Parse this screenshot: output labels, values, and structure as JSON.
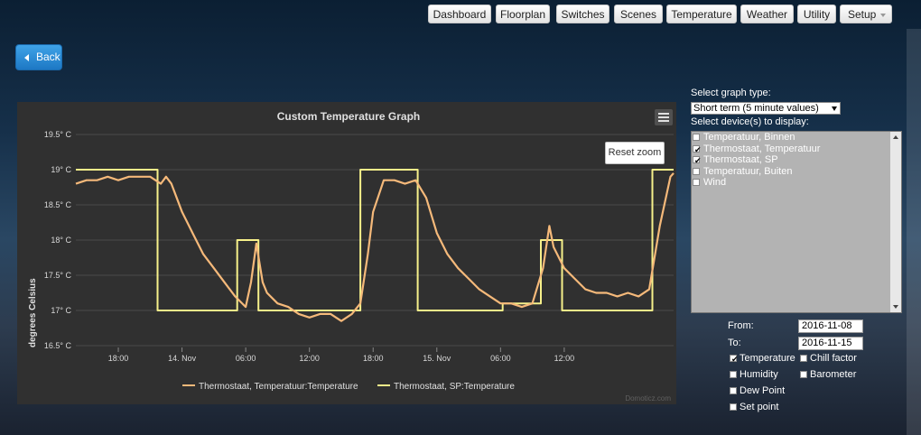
{
  "nav": {
    "items": [
      "Dashboard",
      "Floorplan",
      "Switches",
      "Scenes",
      "Temperature",
      "Weather",
      "Utility",
      "Setup"
    ]
  },
  "back_label": "Back",
  "chart": {
    "title": "Custom Temperature Graph",
    "reset_zoom": "Reset zoom",
    "ylabel": "degrees Celsius",
    "yticks": [
      "16.5° C",
      "17° C",
      "17.5° C",
      "18° C",
      "18.5° C",
      "19° C",
      "19.5° C"
    ],
    "xticks": [
      "18:00",
      "14. Nov",
      "06:00",
      "12:00",
      "18:00",
      "15. Nov",
      "06:00",
      "12:00"
    ],
    "legend": [
      "Thermostaat, Temperatuur:Temperature",
      "Thermostaat, SP:Temperature"
    ],
    "credit": "Domoticz.com"
  },
  "chart_data": {
    "type": "line",
    "title": "Custom Temperature Graph",
    "ylabel": "degrees Celsius",
    "ylim": [
      16.5,
      19.5
    ],
    "x_range": [
      "2016-11-13 14:00",
      "2016-11-15 18:00"
    ],
    "series": [
      {
        "name": "Thermostaat, Temperatuur:Temperature",
        "color": "#f5b97a",
        "points": [
          [
            0,
            18.8
          ],
          [
            1,
            18.85
          ],
          [
            2,
            18.85
          ],
          [
            3,
            18.9
          ],
          [
            4,
            18.85
          ],
          [
            5,
            18.9
          ],
          [
            6,
            18.9
          ],
          [
            7,
            18.9
          ],
          [
            8,
            18.8
          ],
          [
            8.5,
            18.9
          ],
          [
            9,
            18.8
          ],
          [
            9.5,
            18.6
          ],
          [
            10,
            18.4
          ],
          [
            11,
            18.1
          ],
          [
            12,
            17.8
          ],
          [
            13,
            17.6
          ],
          [
            14,
            17.4
          ],
          [
            15,
            17.2
          ],
          [
            16,
            17.05
          ],
          [
            16.5,
            17.4
          ],
          [
            17,
            17.95
          ],
          [
            17.6,
            17.4
          ],
          [
            18,
            17.25
          ],
          [
            19,
            17.1
          ],
          [
            20,
            17.05
          ],
          [
            21,
            16.95
          ],
          [
            22,
            16.9
          ],
          [
            23,
            16.95
          ],
          [
            24,
            16.95
          ],
          [
            25,
            16.85
          ],
          [
            26,
            16.95
          ],
          [
            26.8,
            17.1
          ],
          [
            27.5,
            17.8
          ],
          [
            28,
            18.4
          ],
          [
            29,
            18.85
          ],
          [
            30,
            18.85
          ],
          [
            31,
            18.8
          ],
          [
            32,
            18.85
          ],
          [
            33,
            18.6
          ],
          [
            34,
            18.1
          ],
          [
            35,
            17.8
          ],
          [
            36,
            17.6
          ],
          [
            37,
            17.45
          ],
          [
            38,
            17.3
          ],
          [
            39,
            17.2
          ],
          [
            40,
            17.1
          ],
          [
            41,
            17.1
          ],
          [
            42,
            17.05
          ],
          [
            43,
            17.1
          ],
          [
            44,
            17.6
          ],
          [
            44.6,
            18.2
          ],
          [
            45,
            17.9
          ],
          [
            46,
            17.6
          ],
          [
            47,
            17.45
          ],
          [
            48,
            17.3
          ],
          [
            49,
            17.25
          ],
          [
            50,
            17.25
          ],
          [
            51,
            17.2
          ],
          [
            52,
            17.25
          ],
          [
            53,
            17.2
          ],
          [
            54,
            17.3
          ],
          [
            55,
            18.2
          ],
          [
            56,
            18.9
          ],
          [
            56.3,
            18.95
          ]
        ]
      },
      {
        "name": "Thermostaat, SP:Temperature",
        "color": "#f6f08a",
        "points": [
          [
            0,
            19
          ],
          [
            7.7,
            19
          ],
          [
            7.7,
            17
          ],
          [
            15.2,
            17
          ],
          [
            15.2,
            18
          ],
          [
            17.2,
            18
          ],
          [
            17.2,
            17
          ],
          [
            26.8,
            17
          ],
          [
            26.8,
            19
          ],
          [
            32.2,
            19
          ],
          [
            32.2,
            17
          ],
          [
            40.2,
            17
          ],
          [
            40.2,
            17.1
          ],
          [
            43.8,
            17.1
          ],
          [
            43.8,
            18
          ],
          [
            45.8,
            18
          ],
          [
            45.8,
            17
          ],
          [
            54.3,
            17
          ],
          [
            54.3,
            19
          ],
          [
            56.3,
            19
          ]
        ]
      }
    ]
  },
  "panel": {
    "graph_type_label": "Select graph type:",
    "graph_type_value": "Short term (5 minute values)",
    "devices_label": "Select device(s) to display:",
    "devices": [
      {
        "label": "Temperatuur, Binnen",
        "checked": false
      },
      {
        "label": "Thermostaat, Temperatuur",
        "checked": true
      },
      {
        "label": "Thermostaat, SP",
        "checked": true
      },
      {
        "label": "Temperatuur, Buiten",
        "checked": false
      },
      {
        "label": "Wind",
        "checked": false
      }
    ],
    "from_label": "From:",
    "from_value": "2016-11-08",
    "to_label": "To:",
    "to_value": "2016-11-15",
    "options": [
      {
        "label": "Temperature",
        "checked": true
      },
      {
        "label": "Chill factor",
        "checked": false
      },
      {
        "label": "Humidity",
        "checked": false
      },
      {
        "label": "Barometer",
        "checked": false
      },
      {
        "label": "Dew Point",
        "checked": false
      },
      {
        "label": "Set point",
        "checked": false
      }
    ]
  }
}
